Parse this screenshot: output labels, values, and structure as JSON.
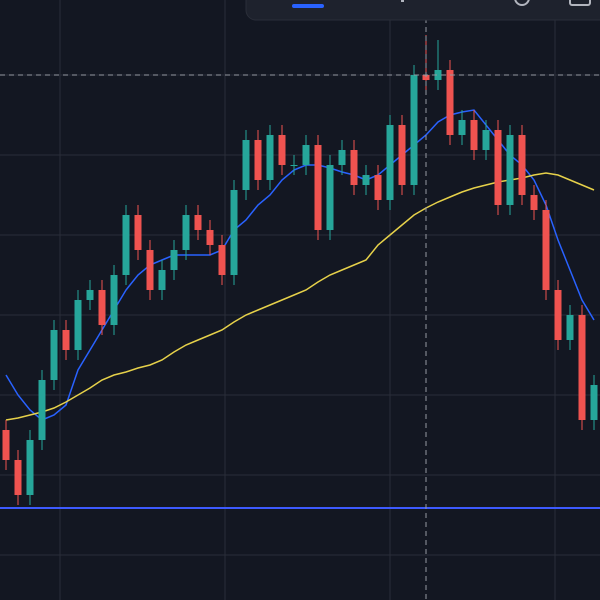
{
  "chart_data": {
    "type": "candlestick",
    "ylim": [
      0,
      600
    ],
    "up_color": "#26a69a",
    "down_color": "#ef5350",
    "open": [
      170,
      140,
      105,
      160,
      220,
      270,
      250,
      300,
      310,
      275,
      325,
      385,
      350,
      310,
      330,
      350,
      385,
      370,
      355,
      325,
      410,
      460,
      420,
      465,
      435,
      435,
      455,
      370,
      435,
      450,
      415,
      425,
      400,
      475,
      415,
      525,
      520,
      530,
      465,
      480,
      450,
      470,
      395,
      465,
      405,
      390,
      310,
      260,
      285,
      180
    ],
    "high": [
      180,
      150,
      170,
      230,
      280,
      280,
      310,
      320,
      320,
      335,
      395,
      395,
      360,
      340,
      360,
      395,
      395,
      380,
      365,
      420,
      470,
      470,
      475,
      475,
      445,
      465,
      465,
      445,
      460,
      460,
      435,
      435,
      485,
      485,
      535,
      565,
      560,
      540,
      490,
      490,
      480,
      480,
      475,
      475,
      415,
      400,
      320,
      295,
      295,
      225
    ],
    "low": [
      130,
      95,
      95,
      150,
      210,
      240,
      240,
      290,
      265,
      265,
      315,
      340,
      300,
      300,
      320,
      340,
      360,
      345,
      315,
      315,
      400,
      410,
      410,
      425,
      425,
      425,
      360,
      360,
      425,
      405,
      405,
      390,
      390,
      405,
      405,
      510,
      510,
      455,
      455,
      440,
      440,
      385,
      385,
      395,
      380,
      300,
      250,
      250,
      170,
      170
    ],
    "close": [
      140,
      105,
      160,
      220,
      270,
      250,
      300,
      310,
      275,
      325,
      385,
      350,
      310,
      330,
      350,
      385,
      370,
      355,
      325,
      410,
      460,
      420,
      465,
      435,
      435,
      455,
      370,
      435,
      450,
      415,
      425,
      400,
      475,
      415,
      525,
      520,
      530,
      465,
      480,
      450,
      470,
      395,
      465,
      405,
      390,
      310,
      260,
      285,
      180,
      215
    ],
    "series": [
      {
        "color": "#2962ff",
        "values": [
          225,
          205,
          190,
          180,
          185,
          195,
          230,
          250,
          270,
          290,
          310,
          325,
          335,
          340,
          345,
          345,
          345,
          345,
          350,
          370,
          380,
          395,
          405,
          420,
          430,
          435,
          435,
          432,
          428,
          425,
          420,
          425,
          435,
          445,
          455,
          465,
          478,
          485,
          488,
          490,
          475,
          460,
          445,
          435,
          420,
          395,
          360,
          330,
          300,
          280
        ]
      },
      {
        "color": "#e6d14a",
        "values": [
          180,
          182,
          185,
          188,
          192,
          198,
          205,
          212,
          220,
          225,
          228,
          232,
          235,
          240,
          248,
          255,
          260,
          265,
          270,
          278,
          285,
          290,
          295,
          300,
          305,
          310,
          318,
          325,
          330,
          335,
          340,
          355,
          365,
          375,
          385,
          392,
          398,
          403,
          408,
          412,
          415,
          418,
          420,
          422,
          425,
          427,
          425,
          420,
          415,
          410
        ]
      }
    ],
    "price_line": {
      "value": 92,
      "color": "#3d5afe"
    },
    "crosshair": {
      "index": 35,
      "value": 525
    }
  }
}
